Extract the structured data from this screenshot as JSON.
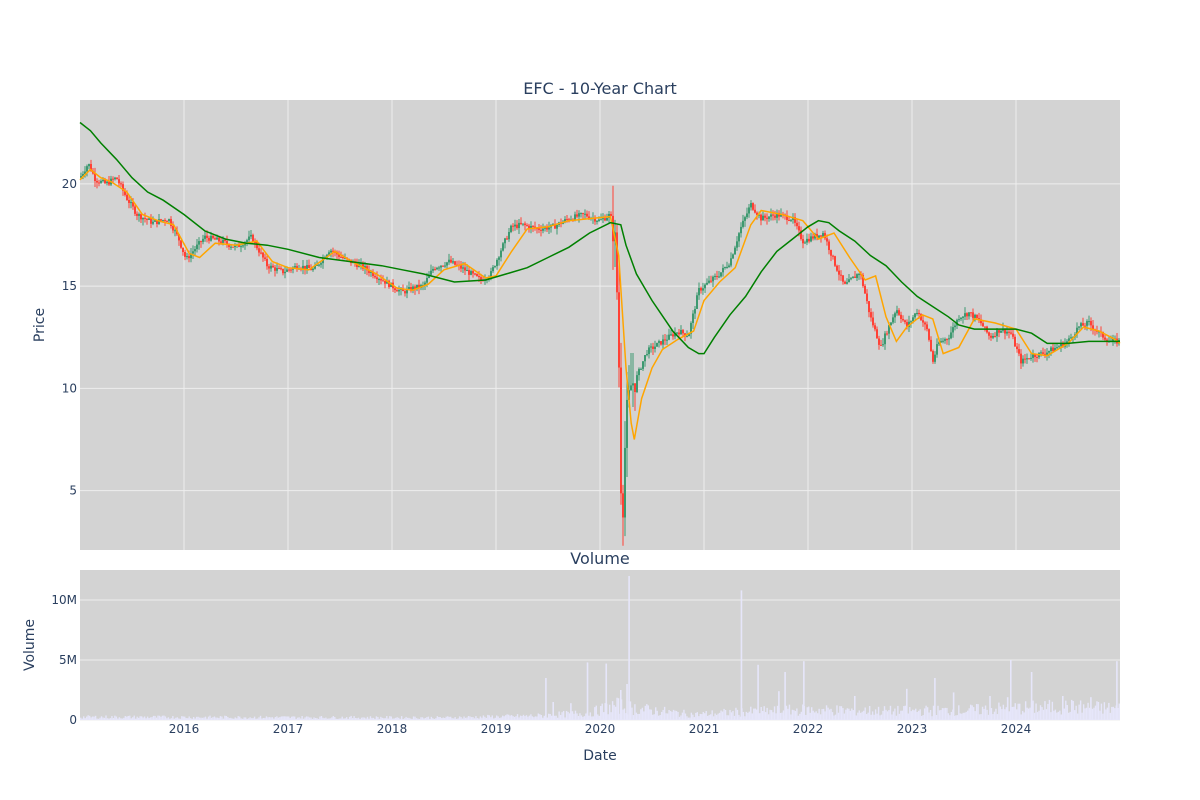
{
  "chart_data": [
    {
      "type": "candlestick",
      "title": "EFC - 10-Year Chart",
      "ylabel": "Price",
      "ylim": [
        2.1,
        24.1
      ],
      "yticks": [
        5,
        10,
        15,
        20
      ],
      "xlim": [
        2015.0,
        2025.0
      ],
      "xticks": [
        2016,
        2017,
        2018,
        2019,
        2020,
        2021,
        2022,
        2023,
        2024
      ],
      "grid": true,
      "colors": {
        "up": "#3d9970",
        "down": "#ff4136",
        "short_ma": "#ffa500",
        "long_ma": "#008000",
        "background": "#d3d3d3"
      },
      "price_path": {
        "x": [
          2015.0,
          2015.08,
          2015.15,
          2015.25,
          2015.35,
          2015.45,
          2015.55,
          2015.7,
          2015.85,
          2015.95,
          2016.02,
          2016.1,
          2016.2,
          2016.35,
          2016.5,
          2016.65,
          2016.8,
          2016.95,
          2017.1,
          2017.25,
          2017.4,
          2017.55,
          2017.7,
          2017.85,
          2018.0,
          2018.1,
          2018.2,
          2018.3,
          2018.4,
          2018.55,
          2018.7,
          2018.85,
          2018.95,
          2019.05,
          2019.15,
          2019.25,
          2019.4,
          2019.55,
          2019.7,
          2019.85,
          2020.0,
          2020.1,
          2020.15,
          2020.18,
          2020.2,
          2020.22,
          2020.25,
          2020.3,
          2020.35,
          2020.45,
          2020.6,
          2020.75,
          2020.85,
          2020.95,
          2021.05,
          2021.15,
          2021.25,
          2021.35,
          2021.45,
          2021.55,
          2021.7,
          2021.85,
          2021.95,
          2022.05,
          2022.15,
          2022.25,
          2022.35,
          2022.5,
          2022.6,
          2022.7,
          2022.75,
          2022.85,
          2022.95,
          2023.05,
          2023.15,
          2023.2,
          2023.25,
          2023.35,
          2023.45,
          2023.55,
          2023.65,
          2023.75,
          2023.85,
          2023.95,
          2024.05,
          2024.15,
          2024.25,
          2024.35,
          2024.5,
          2024.6,
          2024.7,
          2024.8,
          2024.9,
          2025.0
        ],
        "y": [
          20.3,
          21.0,
          20.2,
          20.0,
          20.3,
          19.3,
          18.5,
          18.1,
          18.3,
          17.3,
          16.3,
          16.8,
          17.4,
          17.2,
          16.9,
          17.4,
          16.0,
          15.7,
          16.0,
          15.8,
          16.8,
          16.3,
          16.0,
          15.5,
          15.0,
          14.7,
          14.9,
          15.0,
          15.9,
          16.2,
          15.8,
          15.3,
          15.6,
          16.8,
          17.9,
          18.0,
          17.8,
          17.9,
          18.3,
          18.5,
          18.2,
          18.5,
          17.0,
          12.0,
          5.5,
          4.2,
          8.5,
          10.2,
          10.5,
          11.8,
          12.3,
          12.8,
          12.6,
          14.8,
          15.2,
          15.6,
          16.2,
          17.8,
          19.0,
          18.3,
          18.5,
          18.3,
          17.2,
          17.4,
          17.6,
          16.2,
          15.0,
          15.7,
          13.5,
          12.0,
          12.7,
          13.9,
          13.0,
          13.8,
          12.8,
          11.3,
          12.2,
          12.5,
          13.5,
          13.7,
          13.3,
          12.5,
          12.9,
          12.7,
          11.3,
          11.6,
          11.7,
          11.9,
          12.3,
          13.0,
          13.2,
          12.7,
          12.3,
          12.3
        ]
      },
      "short_ma": {
        "x": [
          2015.0,
          2015.1,
          2015.2,
          2015.3,
          2015.45,
          2015.6,
          2015.75,
          2015.9,
          2016.05,
          2016.15,
          2016.3,
          2016.5,
          2016.7,
          2016.85,
          2017.0,
          2017.2,
          2017.45,
          2017.65,
          2017.85,
          2018.05,
          2018.2,
          2018.35,
          2018.5,
          2018.7,
          2018.9,
          2019.0,
          2019.15,
          2019.3,
          2019.5,
          2019.7,
          2019.9,
          2020.1,
          2020.18,
          2020.25,
          2020.3,
          2020.33,
          2020.4,
          2020.5,
          2020.6,
          2020.75,
          2020.9,
          2021.0,
          2021.15,
          2021.3,
          2021.45,
          2021.55,
          2021.75,
          2021.95,
          2022.1,
          2022.25,
          2022.4,
          2022.55,
          2022.65,
          2022.75,
          2022.85,
          2022.95,
          2023.1,
          2023.2,
          2023.3,
          2023.45,
          2023.6,
          2023.8,
          2024.0,
          2024.15,
          2024.3,
          2024.5,
          2024.65,
          2024.8,
          2024.95,
          2025.0
        ],
        "y": [
          20.2,
          20.7,
          20.3,
          20.1,
          19.6,
          18.5,
          18.2,
          18.0,
          16.6,
          16.4,
          17.1,
          17.0,
          17.2,
          16.2,
          15.9,
          15.8,
          16.7,
          16.1,
          15.6,
          14.9,
          14.8,
          15.1,
          15.8,
          16.1,
          15.4,
          15.5,
          16.7,
          17.8,
          17.9,
          18.2,
          18.3,
          18.4,
          16.5,
          11.0,
          8.3,
          7.5,
          9.5,
          11.0,
          11.9,
          12.4,
          12.8,
          14.3,
          15.2,
          15.9,
          18.0,
          18.7,
          18.5,
          18.2,
          17.3,
          17.6,
          16.4,
          15.3,
          15.5,
          13.5,
          12.3,
          13.0,
          13.6,
          13.4,
          11.7,
          12.0,
          13.4,
          13.2,
          12.9,
          11.7,
          11.6,
          12.2,
          13.0,
          12.8,
          12.4,
          12.2
        ]
      },
      "long_ma": {
        "x": [
          2015.0,
          2015.1,
          2015.2,
          2015.35,
          2015.5,
          2015.65,
          2015.8,
          2016.0,
          2016.2,
          2016.4,
          2016.6,
          2016.8,
          2017.0,
          2017.3,
          2017.6,
          2017.9,
          2018.1,
          2018.3,
          2018.6,
          2018.9,
          2019.1,
          2019.3,
          2019.5,
          2019.7,
          2019.9,
          2020.1,
          2020.2,
          2020.25,
          2020.35,
          2020.5,
          2020.7,
          2020.85,
          2020.95,
          2021.0,
          2021.1,
          2021.25,
          2021.4,
          2021.55,
          2021.7,
          2021.85,
          2022.0,
          2022.1,
          2022.2,
          2022.3,
          2022.45,
          2022.6,
          2022.75,
          2022.9,
          2023.05,
          2023.2,
          2023.35,
          2023.45,
          2023.6,
          2023.8,
          2024.0,
          2024.15,
          2024.3,
          2024.5,
          2024.7,
          2024.9,
          2025.0
        ],
        "y": [
          23.0,
          22.6,
          22.0,
          21.2,
          20.3,
          19.6,
          19.2,
          18.5,
          17.7,
          17.3,
          17.1,
          17.0,
          16.8,
          16.4,
          16.2,
          16.0,
          15.8,
          15.6,
          15.2,
          15.3,
          15.6,
          15.9,
          16.4,
          16.9,
          17.6,
          18.1,
          18.0,
          17.0,
          15.6,
          14.3,
          12.8,
          12.0,
          11.7,
          11.7,
          12.5,
          13.6,
          14.5,
          15.7,
          16.7,
          17.3,
          17.9,
          18.2,
          18.1,
          17.7,
          17.2,
          16.5,
          16.0,
          15.2,
          14.5,
          14.0,
          13.5,
          13.1,
          12.9,
          12.9,
          12.9,
          12.7,
          12.2,
          12.2,
          12.3,
          12.3,
          12.3
        ]
      }
    },
    {
      "type": "bar",
      "title": "Volume",
      "ylabel": "Volume",
      "xlabel": "Date",
      "ylim": [
        0,
        12500000
      ],
      "yticks": [
        0,
        5000000,
        10000000
      ],
      "ytick_labels": [
        "0",
        "5M",
        "10M"
      ],
      "xlim": [
        2015.0,
        2025.0
      ],
      "xticks": [
        2016,
        2017,
        2018,
        2019,
        2020,
        2021,
        2022,
        2023,
        2024
      ],
      "bar_color": "#e6e6fa",
      "base_volume": [
        {
          "x": 2015.0,
          "v": 250000
        },
        {
          "x": 2018.5,
          "v": 200000
        },
        {
          "x": 2019.4,
          "v": 350000
        },
        {
          "x": 2019.9,
          "v": 600000
        },
        {
          "x": 2020.15,
          "v": 1200000
        },
        {
          "x": 2020.4,
          "v": 900000
        },
        {
          "x": 2020.9,
          "v": 450000
        },
        {
          "x": 2021.3,
          "v": 650000
        },
        {
          "x": 2022.0,
          "v": 850000
        },
        {
          "x": 2022.8,
          "v": 750000
        },
        {
          "x": 2023.5,
          "v": 800000
        },
        {
          "x": 2024.0,
          "v": 1000000
        },
        {
          "x": 2024.5,
          "v": 1100000
        },
        {
          "x": 2025.0,
          "v": 950000
        }
      ],
      "spikes": [
        {
          "x": 2019.48,
          "v": 3500000
        },
        {
          "x": 2019.55,
          "v": 1500000
        },
        {
          "x": 2019.72,
          "v": 1400000
        },
        {
          "x": 2019.88,
          "v": 4800000
        },
        {
          "x": 2020.06,
          "v": 4700000
        },
        {
          "x": 2020.2,
          "v": 2500000
        },
        {
          "x": 2020.26,
          "v": 3000000
        },
        {
          "x": 2020.28,
          "v": 12000000
        },
        {
          "x": 2021.36,
          "v": 10800000
        },
        {
          "x": 2021.52,
          "v": 4600000
        },
        {
          "x": 2021.72,
          "v": 2400000
        },
        {
          "x": 2021.78,
          "v": 4000000
        },
        {
          "x": 2021.96,
          "v": 4900000
        },
        {
          "x": 2022.45,
          "v": 2000000
        },
        {
          "x": 2022.95,
          "v": 2600000
        },
        {
          "x": 2023.22,
          "v": 3500000
        },
        {
          "x": 2023.4,
          "v": 2300000
        },
        {
          "x": 2023.75,
          "v": 2000000
        },
        {
          "x": 2023.92,
          "v": 1900000
        },
        {
          "x": 2023.95,
          "v": 5000000
        },
        {
          "x": 2024.15,
          "v": 4000000
        },
        {
          "x": 2024.45,
          "v": 2000000
        },
        {
          "x": 2024.72,
          "v": 1900000
        },
        {
          "x": 2024.97,
          "v": 4900000
        }
      ]
    }
  ]
}
